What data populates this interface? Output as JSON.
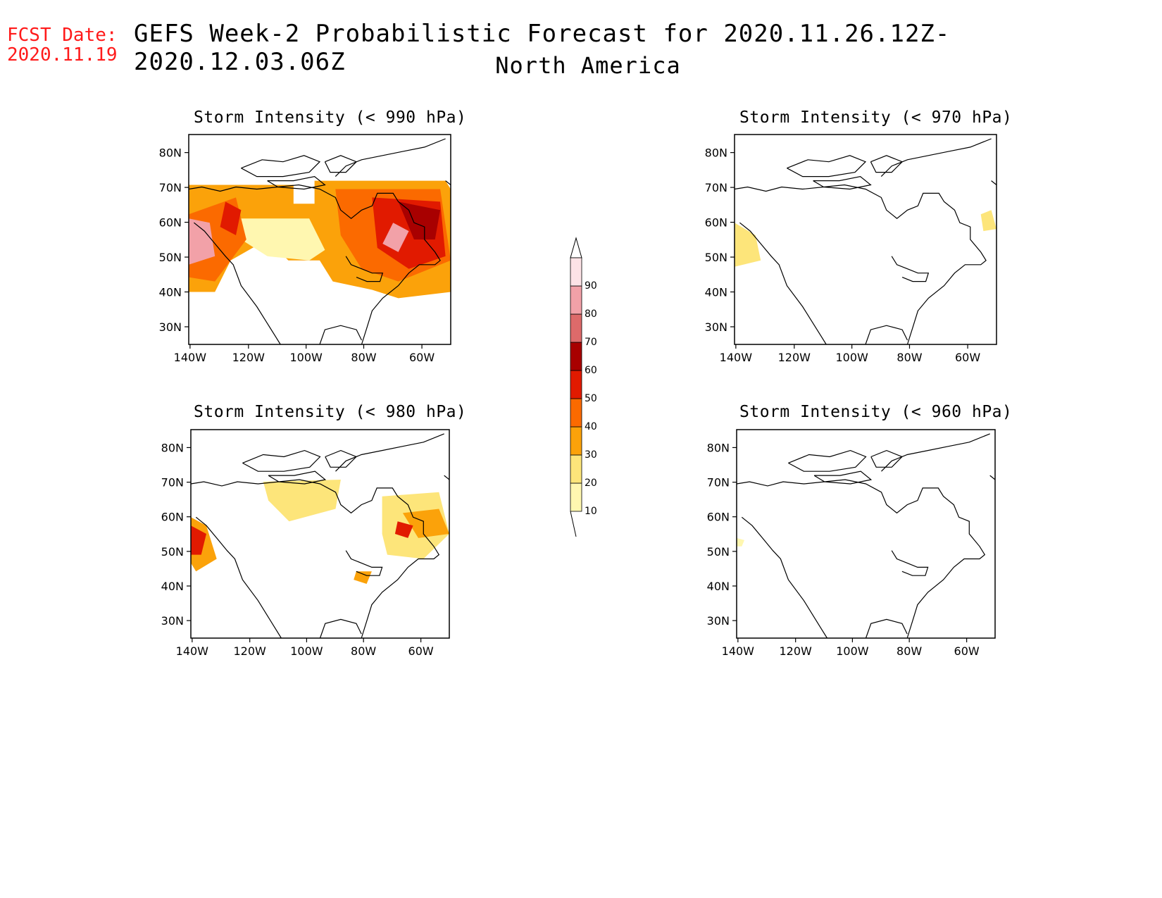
{
  "header": {
    "fcst_label": "FCST Date:",
    "fcst_date": "2020.11.19",
    "title": "GEFS Week-2 Probabilistic Forecast for 2020.11.26.12Z-2020.12.03.06Z",
    "subtitle": "North America"
  },
  "panels": [
    {
      "id": "p990",
      "title": "Storm Intensity (< 990 hPa)"
    },
    {
      "id": "p970",
      "title": "Storm Intensity (< 970 hPa)"
    },
    {
      "id": "p980",
      "title": "Storm Intensity (< 980 hPa)"
    },
    {
      "id": "p960",
      "title": "Storm Intensity (< 960 hPa)"
    }
  ],
  "axes": {
    "lat_ticks": [
      "80N",
      "70N",
      "60N",
      "50N",
      "40N",
      "30N"
    ],
    "lon_ticks": [
      "140W",
      "120W",
      "100W",
      "80W",
      "60W"
    ]
  },
  "colorbar": {
    "levels": [
      "10",
      "20",
      "30",
      "40",
      "50",
      "60",
      "70",
      "80",
      "90"
    ],
    "colors": [
      "#fff7b0",
      "#fde57a",
      "#fba20a",
      "#fb6a00",
      "#e11a00",
      "#a80000",
      "#dd6a6a",
      "#f2a1a8",
      "#fde3e6"
    ]
  }
}
